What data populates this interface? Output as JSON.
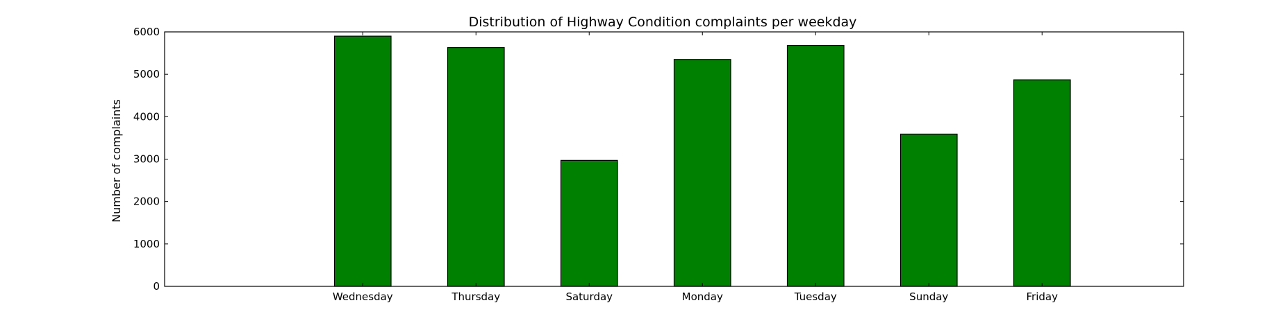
{
  "chart_data": {
    "type": "bar",
    "title": "Distribution of  Highway Condition complaints per weekday",
    "xlabel": "",
    "ylabel": "Number of complaints",
    "categories": [
      "Wednesday",
      "Thursday",
      "Saturday",
      "Monday",
      "Tuesday",
      "Sunday",
      "Friday"
    ],
    "values": [
      5900,
      5630,
      2970,
      5350,
      5680,
      3590,
      4870
    ],
    "ylim": [
      0,
      6000
    ],
    "yticks": [
      0,
      1000,
      2000,
      3000,
      4000,
      5000,
      6000
    ],
    "grid": false,
    "legend": "none",
    "bar_color": "#008000",
    "edge_color": "#000000"
  }
}
